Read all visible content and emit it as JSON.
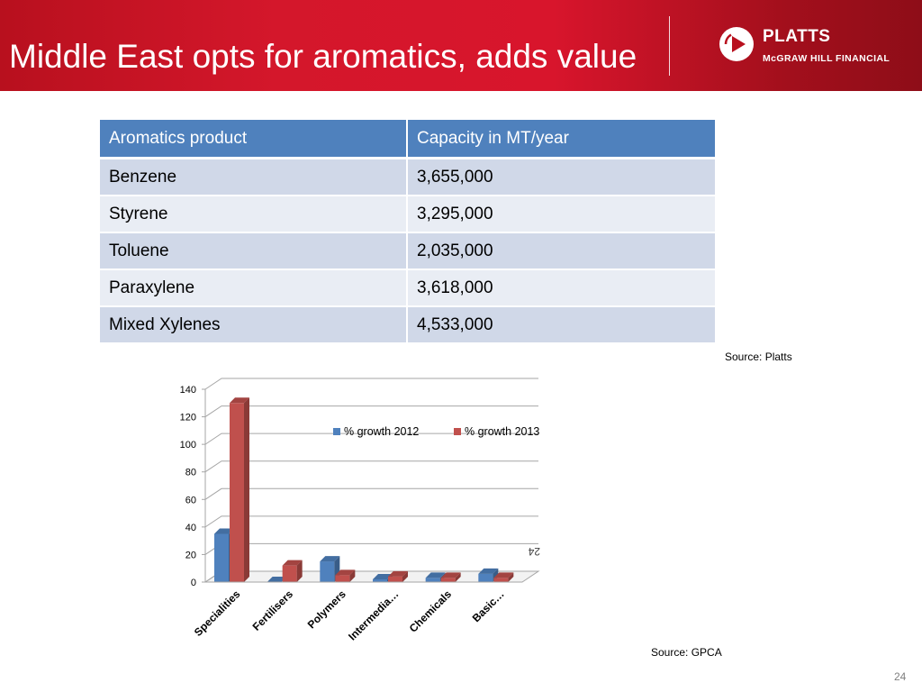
{
  "header": {
    "title": "Middle East opts for aromatics, adds value",
    "logo_name": "PLATTS",
    "logo_subtitle": "McGRAW HILL FINANCIAL",
    "logo_icon": "play-icon"
  },
  "table": {
    "headers": [
      "Aromatics product",
      "Capacity in MT/year"
    ],
    "rows": [
      [
        "Benzene",
        "3,655,000"
      ],
      [
        "Styrene",
        "3,295,000"
      ],
      [
        "Toluene",
        "2,035,000"
      ],
      [
        "Paraxylene",
        "3,618,000"
      ],
      [
        "Mixed Xylenes",
        "4,533,000"
      ]
    ]
  },
  "sources": {
    "table_source": "Source: Platts",
    "chart_source": "Source: GPCA"
  },
  "page_number": "24",
  "colors": {
    "header_red": "#c8102e",
    "table_header_blue": "#4f81bd",
    "series_2012": "#4f81bd",
    "series_2013": "#c0504d"
  },
  "chart_data": {
    "type": "bar",
    "categories": [
      "Specialities",
      "Fertilisers",
      "Polymers",
      "Intermedia…",
      "Chemicals",
      "Basic…"
    ],
    "series": [
      {
        "name": "% growth 2012",
        "values": [
          35,
          0,
          15,
          2,
          3,
          6
        ]
      },
      {
        "name": "% growth 2013",
        "values": [
          130,
          12,
          5,
          4,
          3,
          3
        ]
      }
    ],
    "ylim": [
      0,
      140
    ],
    "yticks": [
      "0",
      "20",
      "40",
      "60",
      "80",
      "100",
      "120",
      "140"
    ],
    "grid": true,
    "legend_position": "top-center",
    "annotation": "24"
  }
}
